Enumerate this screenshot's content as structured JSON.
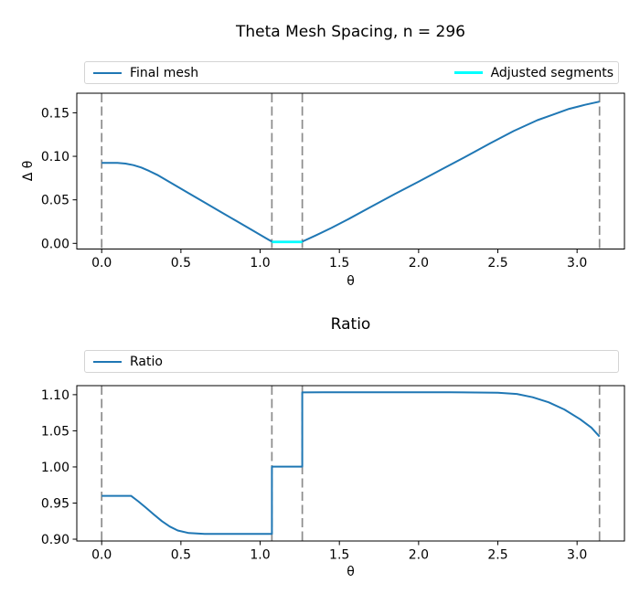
{
  "chart_data": [
    {
      "type": "line",
      "title": "Theta Mesh Spacing, n = 296",
      "xlabel": "θ",
      "ylabel": "Δ θ",
      "xlim": [
        -0.157,
        3.299
      ],
      "ylim": [
        -0.0065,
        0.1725
      ],
      "grid": false,
      "legend_position": "top-expand",
      "xticks": {
        "values": [
          0,
          0.5,
          1.0,
          1.5,
          2.0,
          2.5,
          3.0
        ],
        "labels": [
          "0.0",
          "0.5",
          "1.0",
          "1.5",
          "2.0",
          "2.5",
          "3.0"
        ]
      },
      "yticks": {
        "values": [
          0.0,
          0.05,
          0.1,
          0.15
        ],
        "labels": [
          "0.00",
          "0.05",
          "0.10",
          "0.15"
        ]
      },
      "vlines": {
        "x": [
          0,
          1.074,
          1.266,
          3.1416
        ],
        "color": "#8b8b8b",
        "style": "dashed"
      },
      "series": [
        {
          "name": "Final mesh",
          "color": "#1f77b4",
          "width": 2,
          "x": [
            0,
            0.1,
            0.15,
            0.2,
            0.25,
            0.3,
            0.35,
            0.45,
            0.55,
            0.65,
            0.75,
            0.85,
            0.95,
            1.05,
            1.074,
            1.266,
            1.35,
            1.45,
            1.55,
            1.7,
            1.85,
            2.0,
            2.15,
            2.3,
            2.45,
            2.6,
            2.75,
            2.85,
            2.95,
            3.05,
            3.1416
          ],
          "y": [
            0.0925,
            0.0925,
            0.0917,
            0.0899,
            0.0871,
            0.0832,
            0.0787,
            0.0681,
            0.0575,
            0.0469,
            0.0363,
            0.0257,
            0.0151,
            0.0045,
            0.002,
            0.002,
            0.009,
            0.0178,
            0.0272,
            0.042,
            0.0568,
            0.071,
            0.0855,
            0.1,
            0.1148,
            0.129,
            0.1415,
            0.148,
            0.1545,
            0.1592,
            0.1628
          ]
        },
        {
          "name": "Adjusted segments",
          "color": "#00ffff",
          "width": 2.6,
          "x": [
            1.074,
            1.266
          ],
          "y": [
            0.0016,
            0.0016
          ]
        }
      ]
    },
    {
      "type": "line",
      "title": "Ratio",
      "xlabel": "θ",
      "ylabel": "",
      "xlim": [
        -0.157,
        3.299
      ],
      "ylim": [
        0.8975,
        1.1125
      ],
      "grid": false,
      "legend_position": "top-expand",
      "xticks": {
        "values": [
          0,
          0.5,
          1.0,
          1.5,
          2.0,
          2.5,
          3.0
        ],
        "labels": [
          "0.0",
          "0.5",
          "1.0",
          "1.5",
          "2.0",
          "2.5",
          "3.0"
        ]
      },
      "yticks": {
        "values": [
          0.9,
          0.95,
          1.0,
          1.05,
          1.1
        ],
        "labels": [
          "0.90",
          "0.95",
          "1.00",
          "1.05",
          "1.10"
        ]
      },
      "vlines": {
        "x": [
          0,
          1.074,
          1.266,
          3.1416
        ],
        "color": "#8b8b8b",
        "style": "dashed"
      },
      "series": [
        {
          "name": "Ratio",
          "color": "#1f77b4",
          "width": 2,
          "x": [
            0,
            0.185,
            0.23,
            0.28,
            0.33,
            0.38,
            0.43,
            0.48,
            0.55,
            0.65,
            0.8,
            1.0,
            1.074,
            1.074,
            1.266,
            1.266,
            1.4,
            1.8,
            2.2,
            2.5,
            2.62,
            2.72,
            2.82,
            2.92,
            3.02,
            3.09,
            3.1416
          ],
          "y": [
            0.96,
            0.96,
            0.9525,
            0.9435,
            0.934,
            0.925,
            0.9175,
            0.912,
            0.9085,
            0.9074,
            0.9073,
            0.9073,
            0.9073,
            1.0005,
            1.0005,
            1.1032,
            1.1033,
            1.1033,
            1.1033,
            1.1028,
            1.101,
            1.0965,
            1.0895,
            1.0795,
            1.066,
            1.0545,
            1.042
          ]
        }
      ]
    }
  ]
}
